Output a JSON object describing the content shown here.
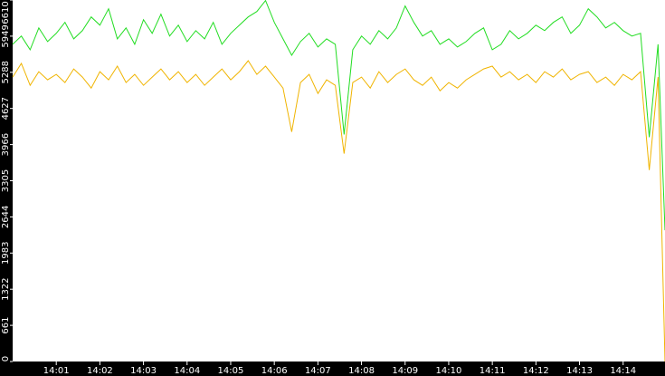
{
  "chart_data": {
    "type": "line",
    "x": [
      0.0,
      0.2,
      0.4,
      0.6,
      0.8,
      1.0,
      1.2,
      1.4,
      1.6,
      1.8,
      2.0,
      2.2,
      2.4,
      2.6,
      2.8,
      3.0,
      3.2,
      3.4,
      3.6,
      3.8,
      4.0,
      4.2,
      4.4,
      4.6,
      4.8,
      5.0,
      5.2,
      5.4,
      5.6,
      5.8,
      6.0,
      6.2,
      6.4,
      6.6,
      6.8,
      7.0,
      7.2,
      7.4,
      7.6,
      7.8,
      8.0,
      8.2,
      8.4,
      8.6,
      8.8,
      9.0,
      9.2,
      9.4,
      9.6,
      9.8,
      10.0,
      10.2,
      10.4,
      10.6,
      10.8,
      11.0,
      11.2,
      11.4,
      11.6,
      11.8,
      12.0,
      12.2,
      12.4,
      12.6,
      12.8,
      13.0,
      13.2,
      13.4,
      13.6,
      13.8,
      14.0,
      14.2,
      14.4,
      14.6,
      14.8,
      14.96
    ],
    "series": [
      {
        "color": "#22dd22",
        "values": [
          5800,
          5950,
          5700,
          6100,
          5850,
          6000,
          6200,
          5900,
          6050,
          6300,
          6150,
          6450,
          5900,
          6100,
          5800,
          6250,
          6000,
          6350,
          5950,
          6150,
          5850,
          6050,
          5900,
          6200,
          5800,
          6000,
          6150,
          6300,
          6400,
          6600,
          6200,
          5900,
          5600,
          5850,
          6000,
          5750,
          5900,
          5800,
          4150,
          5700,
          5950,
          5800,
          6050,
          5900,
          6100,
          6500,
          6200,
          5950,
          6050,
          5800,
          5900,
          5750,
          5850,
          6000,
          6100,
          5700,
          5800,
          6050,
          5900,
          6000,
          6150,
          6050,
          6200,
          6300,
          6000,
          6150,
          6450,
          6300,
          6100,
          6200,
          6050,
          5950,
          6000,
          4100,
          5800,
          2400
        ]
      },
      {
        "color": "#f0b400",
        "values": [
          5200,
          5450,
          5050,
          5300,
          5150,
          5250,
          5100,
          5350,
          5200,
          5000,
          5300,
          5150,
          5400,
          5100,
          5250,
          5050,
          5200,
          5350,
          5150,
          5300,
          5100,
          5250,
          5050,
          5200,
          5350,
          5150,
          5300,
          5500,
          5250,
          5400,
          5200,
          5000,
          4200,
          5100,
          5250,
          4900,
          5150,
          5050,
          3800,
          5100,
          5200,
          5000,
          5300,
          5100,
          5250,
          5350,
          5150,
          5050,
          5200,
          4950,
          5100,
          5000,
          5150,
          5250,
          5350,
          5400,
          5200,
          5300,
          5150,
          5250,
          5100,
          5300,
          5200,
          5350,
          5150,
          5250,
          5300,
          5100,
          5200,
          5050,
          5250,
          5150,
          5300,
          3500,
          5200,
          0
        ]
      }
    ],
    "xlim": [
      0,
      14.96
    ],
    "xticks": [
      {
        "value": 1,
        "label": "14:01"
      },
      {
        "value": 2,
        "label": "14:02"
      },
      {
        "value": 3,
        "label": "14:03"
      },
      {
        "value": 4,
        "label": "14:04"
      },
      {
        "value": 5,
        "label": "14:05"
      },
      {
        "value": 6,
        "label": "14:06"
      },
      {
        "value": 7,
        "label": "14:07"
      },
      {
        "value": 8,
        "label": "14:08"
      },
      {
        "value": 9,
        "label": "14:09"
      },
      {
        "value": 10,
        "label": "14:10"
      },
      {
        "value": 11,
        "label": "14:11"
      },
      {
        "value": 12,
        "label": "14:12"
      },
      {
        "value": 13,
        "label": "14:13"
      },
      {
        "value": 14,
        "label": "14:14"
      }
    ],
    "ylim": [
      0,
      6610
    ],
    "yticks": [
      0,
      661,
      1322,
      1983,
      2644,
      3305,
      3966,
      4627,
      5288,
      5949,
      6610
    ]
  }
}
